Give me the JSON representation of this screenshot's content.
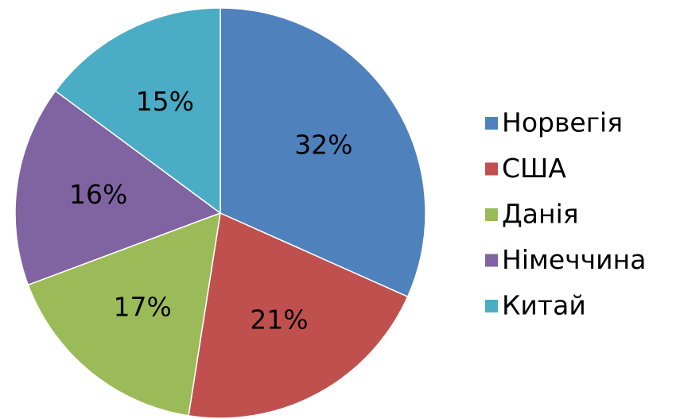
{
  "chart_data": {
    "type": "pie",
    "categories": [
      "Норвегія",
      "США",
      "Данія",
      "Німеччина",
      "Китай"
    ],
    "values": [
      32,
      21,
      17,
      16,
      15
    ],
    "value_labels": [
      "32%",
      "21%",
      "17%",
      "16%",
      "15%"
    ],
    "colors": [
      "#4f81bd",
      "#c0504d",
      "#9bbb59",
      "#8064a2",
      "#4bacc6"
    ],
    "legend": "right"
  }
}
